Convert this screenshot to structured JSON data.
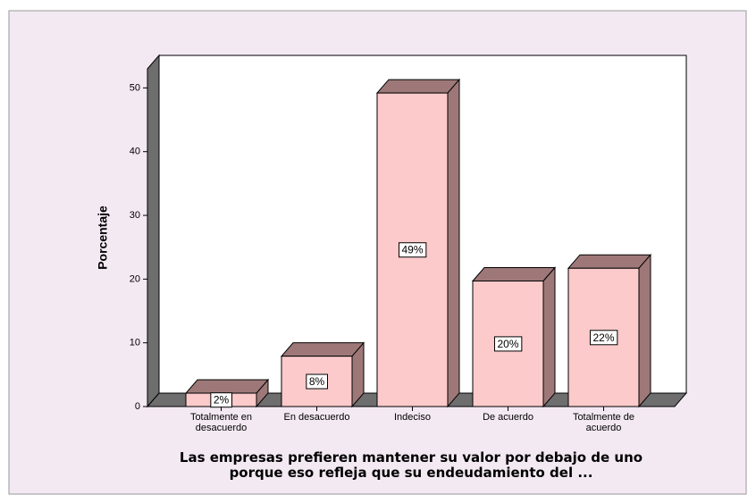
{
  "chart_data": {
    "type": "bar3d",
    "y_label": "Porcentaje",
    "x_label": "Las empresas prefieren mantener su valor por debajo de uno porque eso refleja que su endeudamiento del ...",
    "categories": [
      "Totalmente en desacuerdo",
      "En desacuerdo",
      "Indeciso",
      "De acuerdo",
      "Totalmente de acuerdo"
    ],
    "values": [
      2.1,
      7.9,
      49.2,
      19.7,
      21.7
    ],
    "value_labels": [
      "2%",
      "8%",
      "49%",
      "20%",
      "22%"
    ],
    "color": "#fccaca",
    "side_color": "#9e7878",
    "ylim": [
      0,
      53
    ],
    "yticks": [
      0,
      10,
      20,
      30,
      40,
      50
    ]
  }
}
